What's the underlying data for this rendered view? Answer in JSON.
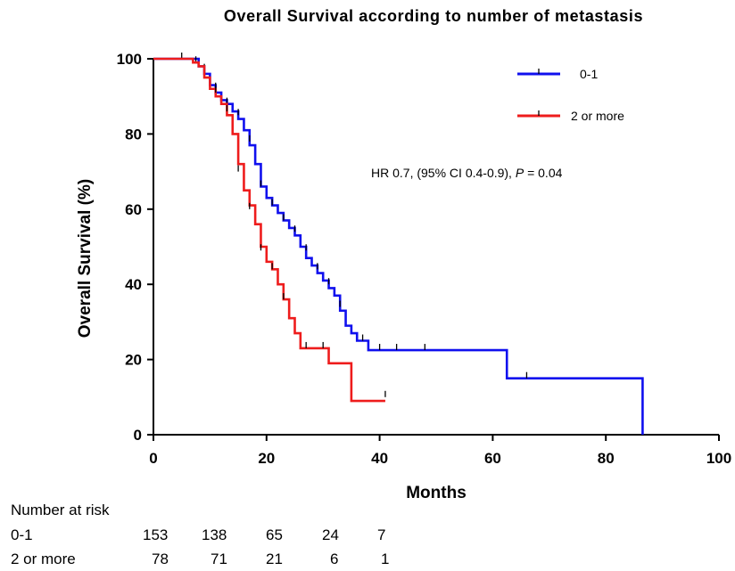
{
  "chart_data": {
    "type": "line",
    "title": "Overall Survival according to number of metastasis",
    "xlabel": "Months",
    "ylabel": "Overall Survival (%)",
    "xlim": [
      0,
      100
    ],
    "ylim": [
      0,
      100
    ],
    "x_ticks": [
      "0",
      "20",
      "40",
      "60",
      "80",
      "100"
    ],
    "y_ticks": [
      "0",
      "20",
      "40",
      "60",
      "80",
      "100"
    ],
    "grid": false,
    "legend_position": "top-right",
    "series": [
      {
        "name": "0-1",
        "color": "#1010ee",
        "points": [
          [
            0,
            100
          ],
          [
            7,
            100
          ],
          [
            8,
            98
          ],
          [
            9,
            96
          ],
          [
            10,
            93
          ],
          [
            11,
            91
          ],
          [
            12,
            89
          ],
          [
            13,
            88
          ],
          [
            14,
            86
          ],
          [
            15,
            84
          ],
          [
            16,
            81
          ],
          [
            17,
            77
          ],
          [
            18,
            72
          ],
          [
            19,
            66
          ],
          [
            20,
            63
          ],
          [
            21,
            61
          ],
          [
            22,
            59
          ],
          [
            23,
            57
          ],
          [
            24,
            55
          ],
          [
            25,
            53
          ],
          [
            26,
            50
          ],
          [
            27,
            47
          ],
          [
            28,
            45
          ],
          [
            29,
            43
          ],
          [
            30,
            41
          ],
          [
            31,
            39
          ],
          [
            32,
            37
          ],
          [
            33,
            33
          ],
          [
            34,
            29
          ],
          [
            35,
            27
          ],
          [
            36,
            25
          ],
          [
            37,
            25
          ],
          [
            38,
            22.5
          ],
          [
            62.5,
            22.5
          ],
          [
            62.5,
            15
          ],
          [
            86.5,
            15
          ],
          [
            86.5,
            0
          ]
        ],
        "censored": [
          [
            5,
            100
          ],
          [
            7.5,
            99
          ],
          [
            9,
            97
          ],
          [
            11,
            92
          ],
          [
            13,
            88
          ],
          [
            15,
            85
          ],
          [
            17,
            78
          ],
          [
            19,
            66
          ],
          [
            21,
            61
          ],
          [
            23,
            57
          ],
          [
            25,
            54
          ],
          [
            27,
            49
          ],
          [
            29,
            44
          ],
          [
            31,
            40
          ],
          [
            33,
            34
          ],
          [
            37,
            25
          ],
          [
            40,
            22.5
          ],
          [
            43,
            22.5
          ],
          [
            48,
            22.5
          ],
          [
            66,
            15
          ]
        ]
      },
      {
        "name": "2 or more",
        "color": "#ee1c1c",
        "points": [
          [
            0,
            100
          ],
          [
            6,
            100
          ],
          [
            7,
            99
          ],
          [
            8,
            98
          ],
          [
            9,
            95
          ],
          [
            10,
            92
          ],
          [
            11,
            90
          ],
          [
            12,
            88
          ],
          [
            13,
            85
          ],
          [
            14,
            80
          ],
          [
            15,
            72
          ],
          [
            16,
            65
          ],
          [
            17,
            61
          ],
          [
            18,
            56
          ],
          [
            19,
            50
          ],
          [
            20,
            46
          ],
          [
            21,
            44
          ],
          [
            22,
            40
          ],
          [
            23,
            36
          ],
          [
            24,
            31
          ],
          [
            25,
            27
          ],
          [
            26,
            23
          ],
          [
            29,
            23
          ],
          [
            31,
            19
          ],
          [
            35,
            19
          ],
          [
            35,
            9
          ],
          [
            41,
            9
          ]
        ],
        "censored": [
          [
            11,
            91
          ],
          [
            13,
            86
          ],
          [
            15,
            70
          ],
          [
            17,
            60
          ],
          [
            19,
            49
          ],
          [
            21,
            44
          ],
          [
            23,
            36
          ],
          [
            27,
            23
          ],
          [
            30,
            23
          ],
          [
            41,
            10
          ]
        ]
      }
    ],
    "annotation": "HR 0.7, (95% CI 0.4-0.9), P = 0.04"
  },
  "risk_table": {
    "header": "Number at risk",
    "rows": [
      {
        "label": "0-1",
        "values": [
          "153",
          "138",
          "65",
          "24",
          "7"
        ]
      },
      {
        "label": "2 or more",
        "values": [
          "78",
          "71",
          "21",
          "6",
          "1"
        ]
      }
    ]
  }
}
